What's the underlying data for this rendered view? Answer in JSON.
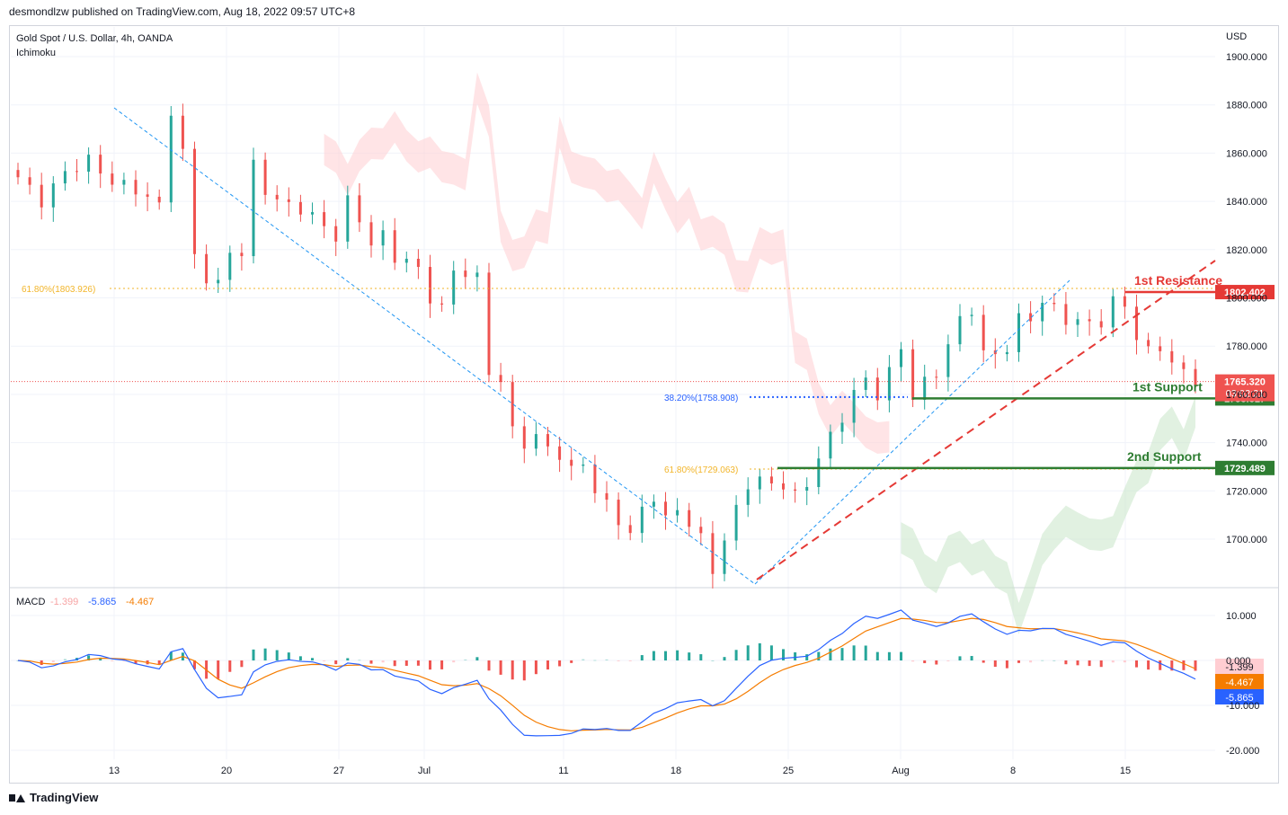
{
  "header": {
    "published": "desmondlzw published on TradingView.com, Aug 18, 2022 09:57 UTC+8",
    "symbol": "Gold Spot / U.S. Dollar, 4h, OANDA",
    "indicator": "Ichimoku",
    "currency": "USD"
  },
  "footer": {
    "brand": "TradingView"
  },
  "colors": {
    "up": "#26a69a",
    "down": "#ef5350",
    "fib": "#f2b52a",
    "fib_blue": "#2962ff",
    "resistance": "#e53935",
    "support": "#2e7d32",
    "cloud_bear": "#ffcdd2",
    "cloud_bull": "#c8e6c9",
    "macd": "#2962ff",
    "signal": "#f57c00"
  },
  "chart_data": [
    {
      "type": "candlestick",
      "title": "Gold Spot / U.S. Dollar, 4h, OANDA",
      "yaxis": {
        "ticks": [
          "1900.000",
          "1880.000",
          "1860.000",
          "1840.000",
          "1820.000",
          "1800.000",
          "1780.000",
          "1760.000",
          "1740.000",
          "1720.000",
          "1700.000"
        ],
        "range": [
          1680,
          1905
        ]
      },
      "xaxis": {
        "ticks": [
          "13",
          "20",
          "27",
          "Jul",
          "11",
          "18",
          "25",
          "Aug",
          "8",
          "15"
        ]
      },
      "price_path": [
        [
          0,
          1850
        ],
        [
          2,
          1840
        ],
        [
          4,
          1852
        ],
        [
          6,
          1857
        ],
        [
          8,
          1848
        ],
        [
          10,
          1845
        ],
        [
          12,
          1838
        ],
        [
          13,
          1878
        ],
        [
          14,
          1860
        ],
        [
          15,
          1818
        ],
        [
          16,
          1808
        ],
        [
          17,
          1805
        ],
        [
          18,
          1820
        ],
        [
          19,
          1818
        ],
        [
          20,
          1855
        ],
        [
          21,
          1845
        ],
        [
          22,
          1840
        ],
        [
          24,
          1837
        ],
        [
          26,
          1830
        ],
        [
          27,
          1825
        ],
        [
          28,
          1840
        ],
        [
          29,
          1833
        ],
        [
          30,
          1822
        ],
        [
          31,
          1826
        ],
        [
          32,
          1817
        ],
        [
          33,
          1815
        ],
        [
          34,
          1812
        ],
        [
          35,
          1800
        ],
        [
          36,
          1795
        ],
        [
          37,
          1812
        ],
        [
          38,
          1810
        ],
        [
          39,
          1808
        ],
        [
          40,
          1770
        ],
        [
          41,
          1765
        ],
        [
          42,
          1745
        ],
        [
          43,
          1740
        ],
        [
          44,
          1742
        ],
        [
          45,
          1738
        ],
        [
          46,
          1735
        ],
        [
          47,
          1728
        ],
        [
          48,
          1732
        ],
        [
          49,
          1720
        ],
        [
          50,
          1714
        ],
        [
          51,
          1708
        ],
        [
          52,
          1702
        ],
        [
          53,
          1712
        ],
        [
          54,
          1718
        ],
        [
          55,
          1708
        ],
        [
          56,
          1712
        ],
        [
          57,
          1707
        ],
        [
          58,
          1700
        ],
        [
          59,
          1687
        ],
        [
          60,
          1700
        ],
        [
          61,
          1712
        ],
        [
          62,
          1723
        ],
        [
          63,
          1725
        ],
        [
          64,
          1722
        ],
        [
          65,
          1723
        ],
        [
          66,
          1718
        ],
        [
          67,
          1722
        ],
        [
          68,
          1735
        ],
        [
          69,
          1742
        ],
        [
          70,
          1750
        ],
        [
          71,
          1762
        ],
        [
          72,
          1765
        ],
        [
          73,
          1760
        ],
        [
          74,
          1770
        ],
        [
          75,
          1778
        ],
        [
          76,
          1760
        ],
        [
          77,
          1765
        ],
        [
          78,
          1768
        ],
        [
          79,
          1782
        ],
        [
          80,
          1790
        ],
        [
          81,
          1795
        ],
        [
          82,
          1778
        ],
        [
          83,
          1775
        ],
        [
          84,
          1780
        ],
        [
          85,
          1792
        ],
        [
          86,
          1790
        ],
        [
          87,
          1800
        ],
        [
          88,
          1795
        ],
        [
          89,
          1790
        ],
        [
          90,
          1792
        ],
        [
          91,
          1788
        ],
        [
          92,
          1790
        ],
        [
          93,
          1800
        ],
        [
          94,
          1795
        ],
        [
          95,
          1785
        ],
        [
          96,
          1778
        ],
        [
          97,
          1778
        ],
        [
          98,
          1775
        ],
        [
          99,
          1768
        ],
        [
          100,
          1765
        ]
      ],
      "last_price": "1765.320",
      "countdown": "03:02:21",
      "fib_levels": [
        {
          "label": "61.80%(1803.926)",
          "value": 1803.926,
          "color": "fib"
        },
        {
          "label": "38.20%(1758.908)",
          "value": 1758.908,
          "color": "fib_blue"
        },
        {
          "label": "61.80%(1729.063)",
          "value": 1729.063,
          "color": "fib"
        }
      ],
      "levels": [
        {
          "label": "1st Resistance",
          "value": 1802.402,
          "tag": "1802.402",
          "color": "resistance"
        },
        {
          "label": "1st Support",
          "value": 1758.317,
          "tag": "1758.317",
          "color": "support"
        },
        {
          "label": "2nd Support",
          "value": 1729.489,
          "tag": "1729.489",
          "color": "support"
        }
      ]
    },
    {
      "type": "line+bar",
      "title": "MACD",
      "legend": {
        "hist": "-1.399",
        "macd": "-5.865",
        "signal": "-4.467"
      },
      "yaxis": {
        "ticks": [
          "10.000",
          "0.000",
          "-10.000",
          "-20.000"
        ],
        "range": [
          -23,
          15
        ]
      },
      "tags": {
        "hist": "-1.399",
        "signal": "-4.467",
        "macd": "-5.865"
      }
    }
  ]
}
